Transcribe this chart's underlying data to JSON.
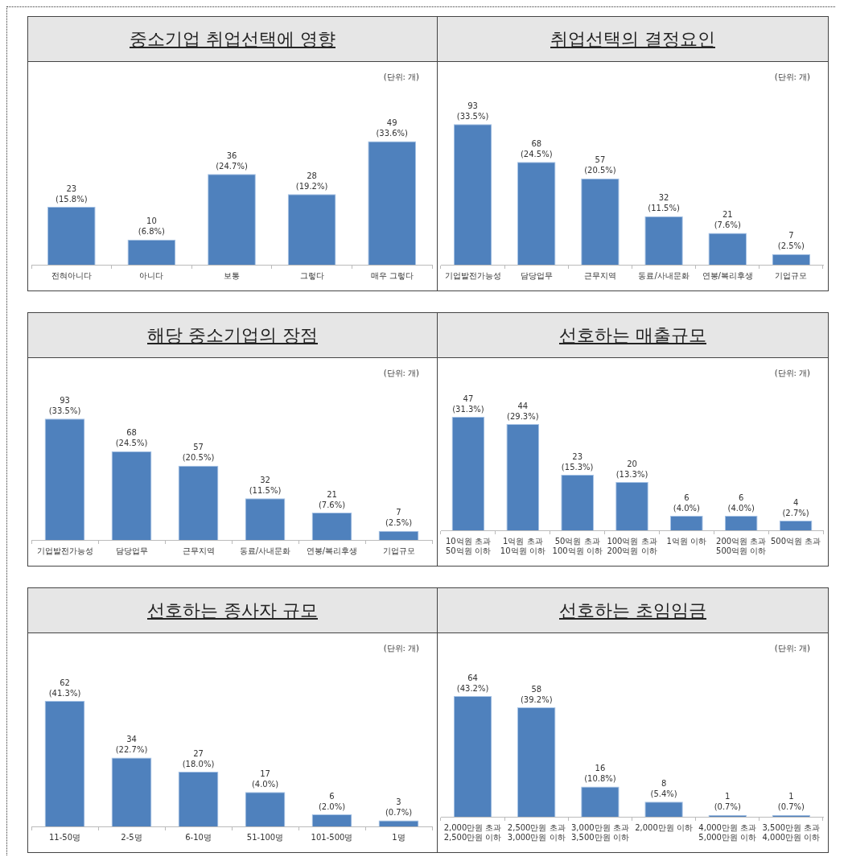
{
  "chart_data": [
    {
      "type": "bar",
      "title": "중소기업 취업선택에 영향",
      "categories": [
        "전혀아니다",
        "아니다",
        "보통",
        "그렇다",
        "매우 그렇다"
      ],
      "values": [
        23,
        10,
        36,
        28,
        49
      ],
      "color": "#4f81bd",
      "value_labels": [
        "23\n(15.8%)",
        "10\n(6.8%)",
        "36\n(24.7%)",
        "28\n(19.2%)",
        "49\n(33.6%)"
      ],
      "annotations": [
        "(단위: 개)"
      ]
    },
    {
      "type": "bar",
      "title": "취업선택의 결정요인",
      "categories": [
        "기업발전가능성",
        "담당업무",
        "근무지역",
        "동료/사내문화",
        "연봉/복리후생",
        "기업규모"
      ],
      "values": [
        93,
        68,
        57,
        32,
        21,
        7
      ],
      "color": "#4f81bd",
      "value_labels": [
        "93\n(33.5%)",
        "68\n(24.5%)",
        "57\n(20.5%)",
        "32\n(11.5%)",
        "21\n(7.6%)",
        "7\n(2.5%)"
      ],
      "annotations": [
        "(단위: 개)"
      ]
    },
    {
      "type": "bar",
      "title": "해당 중소기업의 장점",
      "categories": [
        "기업발전가능성",
        "담당업무",
        "근무지역",
        "동료/사내문화",
        "연봉/복리후생",
        "기업규모"
      ],
      "values": [
        93,
        68,
        57,
        32,
        21,
        7
      ],
      "color": "#4f81bd",
      "value_labels": [
        "93\n(33.5%)",
        "68\n(24.5%)",
        "57\n(20.5%)",
        "32\n(11.5%)",
        "21\n(7.6%)",
        "7\n(2.5%)"
      ],
      "annotations": [
        "(단위: 개)"
      ]
    },
    {
      "type": "bar",
      "title": "선호하는 매출규모",
      "categories": [
        "10억원 초과\n50억원 이하",
        "1억원 초과\n10억원 이하",
        "50억원 초과\n100억원 이하",
        "100억원 초과\n200억원 이하",
        "1억원 이하",
        "200억원 초과\n500억원 이하",
        "500억원 초과"
      ],
      "values": [
        47,
        44,
        23,
        20,
        6,
        6,
        4
      ],
      "color": "#4f81bd",
      "value_labels": [
        "47\n(31.3%)",
        "44\n(29.3%)",
        "23\n(15.3%)",
        "20\n(13.3%)",
        "6\n(4.0%)",
        "6\n(4.0%)",
        "4\n(2.7%)"
      ],
      "annotations": [
        "(단위: 개)"
      ]
    },
    {
      "type": "bar",
      "title": "선호하는 종사자 규모",
      "categories": [
        "11-50명",
        "2-5명",
        "6-10명",
        "51-100명",
        "101-500명",
        "1명"
      ],
      "values": [
        62,
        34,
        27,
        17,
        6,
        3
      ],
      "color": "#4f81bd",
      "value_labels": [
        "62\n(41.3%)",
        "34\n(22.7%)",
        "27\n(18.0%)",
        "17\n(4.0%)",
        "6\n(2.0%)",
        "3\n(0.7%)"
      ],
      "annotations": [
        "(단위: 개)"
      ]
    },
    {
      "type": "bar",
      "title": "선호하는 초임임금",
      "categories": [
        "2,000만원 초과\n2,500만원 이하",
        "2,500만원 초과\n3,000만원 이하",
        "3,000만원 초과\n3,500만원 이하",
        "2,000만원 이하",
        "4,000만원 초과\n5,000만원 이하",
        "3,500만원 초과\n4,000만원 이하"
      ],
      "values": [
        64,
        58,
        16,
        8,
        1,
        1
      ],
      "color": "#4f81bd",
      "value_labels": [
        "64\n(43.2%)",
        "58\n(39.2%)",
        "16\n(10.8%)",
        "8\n(5.4%)",
        "1\n(0.7%)",
        "1\n(0.7%)"
      ],
      "annotations": [
        "(단위: 개)"
      ]
    }
  ]
}
